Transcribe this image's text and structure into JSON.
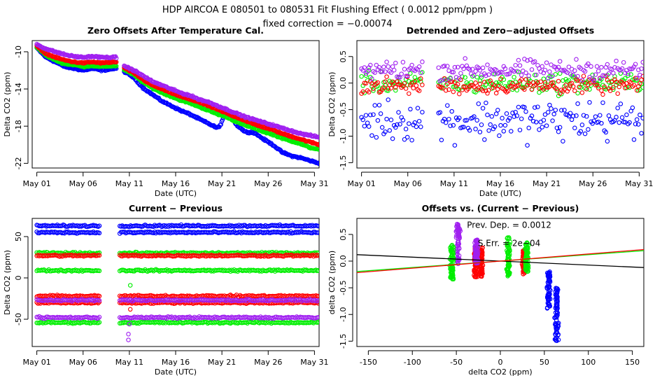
{
  "header": {
    "title": "HDP   AIRCOA E   080501 to 080531   Fit Flushing Effect ( 0.0012 ppm/ppm )",
    "subtitle": "fixed correction = −0.00074"
  },
  "colors": {
    "blue": "#0000ff",
    "green": "#00ee00",
    "red": "#ff0000",
    "purple": "#a020f0",
    "axis": "#000000"
  },
  "chart_data": [
    {
      "id": "p1",
      "type": "scatter",
      "title": "Zero Offsets After Temperature Cal.",
      "xlabel": "Date (UTC)",
      "ylabel": "Delta CO2 (ppm)",
      "xlim": [
        0.5,
        31.5
      ],
      "ylim": [
        -22.5,
        -8.8
      ],
      "x_ticks": [
        1,
        6,
        11,
        16,
        21,
        26,
        31
      ],
      "x_tick_labels": [
        "May 01",
        "May 06",
        "May 11",
        "May 16",
        "May 21",
        "May 26",
        "May 31"
      ],
      "y_ticks": [
        -10,
        -14,
        -18,
        -22
      ],
      "y_tick_labels": [
        "-10",
        "-14",
        "-18",
        "-22"
      ],
      "gaps": [
        [
          9.6,
          10.4
        ]
      ],
      "series": [
        {
          "name": "blue",
          "color": "#0000ff",
          "spread": 0.12,
          "x": [
            1,
            2,
            3,
            4,
            5,
            6,
            7,
            8,
            9.5,
            10.6,
            11.5,
            12.5,
            13.5,
            14.5,
            15.5,
            16.5,
            17.5,
            18.5,
            19.5,
            20.5,
            20.9,
            21.4,
            22,
            22.5,
            23.5,
            24.5,
            25.5,
            26.5,
            27.5,
            28.5,
            29.5,
            30.5,
            31.5
          ],
          "y": [
            -9.6,
            -10.6,
            -11.1,
            -11.6,
            -11.8,
            -12.0,
            -11.8,
            -12.0,
            -11.8,
            -12.2,
            -12.8,
            -13.9,
            -14.6,
            -15.3,
            -15.8,
            -16.3,
            -16.7,
            -17.2,
            -17.7,
            -18.2,
            -17.8,
            -16.3,
            -16.8,
            -17.8,
            -18.6,
            -18.7,
            -19.4,
            -20.0,
            -20.8,
            -21.2,
            -21.4,
            -21.7,
            -22.0
          ]
        },
        {
          "name": "green",
          "color": "#00ee00",
          "spread": 0.1,
          "x": [
            1,
            2,
            3,
            4,
            5,
            6,
            7,
            8,
            9.5,
            10.6,
            11.5,
            12.5,
            13.5,
            14.5,
            15.5,
            16.5,
            17.5,
            18.5,
            19.5,
            20.5,
            21.5,
            22.5,
            23.5,
            24.5,
            25.5,
            26.5,
            27.5,
            28.5,
            29.5,
            30.5,
            31.5
          ],
          "y": [
            -9.5,
            -10.4,
            -10.9,
            -11.3,
            -11.4,
            -11.6,
            -11.5,
            -11.6,
            -11.5,
            -12.0,
            -12.5,
            -13.3,
            -13.9,
            -14.4,
            -14.8,
            -15.2,
            -15.5,
            -15.9,
            -16.3,
            -16.7,
            -17.0,
            -17.5,
            -17.9,
            -18.2,
            -18.6,
            -18.9,
            -19.3,
            -19.6,
            -19.9,
            -20.3,
            -20.5
          ]
        },
        {
          "name": "red",
          "color": "#ff0000",
          "spread": 0.1,
          "x": [
            1,
            2,
            3,
            4,
            5,
            6,
            7,
            8,
            9.5,
            10.6,
            11.5,
            12.5,
            13.5,
            14.5,
            15.5,
            16.5,
            17.5,
            18.5,
            19.5,
            20.5,
            21.5,
            22.5,
            23.5,
            24.5,
            25.5,
            26.5,
            27.5,
            28.5,
            29.5,
            30.5,
            31.5
          ],
          "y": [
            -9.4,
            -10.2,
            -10.6,
            -10.9,
            -11.1,
            -11.2,
            -11.1,
            -11.2,
            -11.1,
            -11.8,
            -12.3,
            -13.0,
            -13.6,
            -14.0,
            -14.4,
            -14.8,
            -15.1,
            -15.4,
            -15.8,
            -16.2,
            -16.6,
            -17.0,
            -17.4,
            -17.8,
            -18.1,
            -18.4,
            -18.8,
            -19.1,
            -19.4,
            -19.7,
            -20.0
          ]
        },
        {
          "name": "purple",
          "color": "#a020f0",
          "spread": 0.12,
          "x": [
            1,
            2,
            3,
            4,
            5,
            6,
            7,
            8,
            9.5,
            10.6,
            11.5,
            12.5,
            13.5,
            14.5,
            15.5,
            16.5,
            17.5,
            18.5,
            19.5,
            20.5,
            21.5,
            22.5,
            23.5,
            24.5,
            25.5,
            26.5,
            27.5,
            28.5,
            29.5,
            30.5,
            31.5
          ],
          "y": [
            -9.2,
            -9.7,
            -10.0,
            -10.3,
            -10.5,
            -10.6,
            -10.5,
            -10.6,
            -10.6,
            -11.6,
            -12.0,
            -12.6,
            -13.2,
            -13.6,
            -14.0,
            -14.4,
            -14.7,
            -15.1,
            -15.4,
            -15.8,
            -16.2,
            -16.6,
            -17.0,
            -17.3,
            -17.6,
            -17.9,
            -18.2,
            -18.5,
            -18.8,
            -19.0,
            -19.2
          ]
        }
      ]
    },
    {
      "id": "p2",
      "type": "scatter",
      "title": "Detrended and Zero−adjusted Offsets",
      "xlabel": "Date (UTC)",
      "ylabel": "Delta CO2 (ppm)",
      "xlim": [
        0.5,
        31.5
      ],
      "ylim": [
        -1.6,
        0.8
      ],
      "x_ticks": [
        1,
        6,
        11,
        16,
        21,
        26,
        31
      ],
      "x_tick_labels": [
        "May 01",
        "May 06",
        "May 11",
        "May 16",
        "May 21",
        "May 26",
        "May 31"
      ],
      "y_ticks": [
        0.5,
        0,
        -0.5,
        -1.0,
        -1.5
      ],
      "y_tick_labels": [
        "0.5",
        "0.0",
        "-0.5",
        "-1.0",
        "-1.5"
      ],
      "gaps": [
        [
          7.7,
          9.3
        ]
      ],
      "series": [
        {
          "name": "blue",
          "color": "#0000ff",
          "center": -0.7,
          "spread": 0.35,
          "xrange": [
            1,
            31.5
          ]
        },
        {
          "name": "green",
          "color": "#00ee00",
          "center": 0.0,
          "spread": 0.18,
          "xrange": [
            1,
            31.5
          ]
        },
        {
          "name": "red",
          "color": "#ff0000",
          "center": -0.05,
          "spread": 0.14,
          "xrange": [
            1,
            31.5
          ]
        },
        {
          "name": "purple",
          "color": "#a020f0",
          "center": 0.25,
          "spread": 0.17,
          "xrange": [
            1,
            31.5
          ]
        }
      ]
    },
    {
      "id": "p3",
      "type": "scatter",
      "title": "Current − Previous",
      "xlabel": "Date (UTC)",
      "ylabel": "Delta CO2 (ppm)",
      "xlim": [
        0.5,
        31.5
      ],
      "ylim": [
        -83,
        72
      ],
      "x_ticks": [
        1,
        6,
        11,
        16,
        21,
        26,
        31
      ],
      "x_tick_labels": [
        "May 01",
        "May 06",
        "May 11",
        "May 16",
        "May 21",
        "May 26",
        "May 31"
      ],
      "y_ticks": [
        50,
        0,
        -50
      ],
      "y_tick_labels": [
        "50",
        "0",
        "-50"
      ],
      "gaps": [
        [
          7.8,
          9.9
        ]
      ],
      "series": [
        {
          "name": "blue",
          "color": "#0000ff",
          "bands": [
            63,
            55
          ]
        },
        {
          "name": "green",
          "color": "#00ee00",
          "bands": [
            30,
            9,
            -54
          ]
        },
        {
          "name": "red",
          "color": "#ff0000",
          "bands": [
            27,
            -22,
            -30
          ]
        },
        {
          "name": "purple",
          "color": "#a020f0",
          "bands": [
            -27,
            -48
          ]
        }
      ]
    },
    {
      "id": "p4",
      "type": "scatter",
      "title": "Offsets vs. (Current − Previous)",
      "xlabel": "delta CO2 (ppm)",
      "ylabel": "delta CO2 (ppm)",
      "xlim": [
        -163,
        163
      ],
      "ylim": [
        -1.6,
        0.8
      ],
      "x_ticks": [
        -150,
        -100,
        -50,
        0,
        50,
        100,
        150
      ],
      "x_tick_labels": [
        "-150",
        "-100",
        "-50",
        "0",
        "50",
        "100",
        "150"
      ],
      "y_ticks": [
        0.5,
        0,
        -0.5,
        -1.0,
        -1.5
      ],
      "y_tick_labels": [
        "0.5",
        "0.0",
        "-0.5",
        "-1.0",
        "-1.5"
      ],
      "clusters": [
        {
          "color": "#a020f0",
          "x": -48,
          "y_range": [
            -0.05,
            0.7
          ]
        },
        {
          "color": "#00ee00",
          "x": -55,
          "y_range": [
            -0.35,
            0.3
          ]
        },
        {
          "color": "#ff0000",
          "x": -28,
          "y_range": [
            -0.3,
            0.25
          ]
        },
        {
          "color": "#ff0000",
          "x": -22,
          "y_range": [
            -0.3,
            0.25
          ]
        },
        {
          "color": "#a020f0",
          "x": -27,
          "y_range": [
            -0.05,
            0.45
          ]
        },
        {
          "color": "#00ee00",
          "x": 9,
          "y_range": [
            -0.3,
            0.45
          ]
        },
        {
          "color": "#ff0000",
          "x": 27,
          "y_range": [
            -0.25,
            0.2
          ]
        },
        {
          "color": "#00ee00",
          "x": 30,
          "y_range": [
            -0.2,
            0.35
          ]
        },
        {
          "color": "#0000ff",
          "x": 55,
          "y_range": [
            -0.9,
            -0.2
          ]
        },
        {
          "color": "#0000ff",
          "x": 64,
          "y_range": [
            -1.5,
            -0.5
          ]
        }
      ],
      "fit_lines": [
        {
          "color": "#000000",
          "slope": -0.00074,
          "intercept": 0.0
        },
        {
          "color": "#00ee00",
          "slope": 0.0012,
          "intercept": 0.0
        },
        {
          "color": "#ff0000",
          "slope": 0.00133,
          "intercept": 0.0
        }
      ],
      "annotations": [
        "Prev. Dep. = 0.0012",
        "S.Err. = 2e−04"
      ]
    }
  ]
}
